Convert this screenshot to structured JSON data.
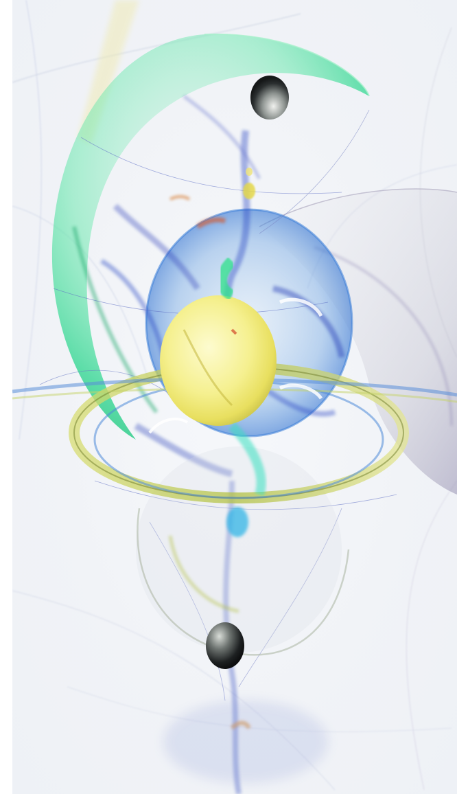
{
  "image": {
    "subject": "abstract-fractal-flame-artwork",
    "palette": {
      "background": "#f3f5f8",
      "mint": "#38e29a",
      "teal": "#38b6c9",
      "royal_blue": "#2f4fc4",
      "indigo": "#3a3fb0",
      "yellow": "#f3f08a",
      "olive": "#b5c24a",
      "rust": "#d0603a",
      "violet": "#8a7ab8",
      "dark_orb": "#2a2e33"
    }
  }
}
